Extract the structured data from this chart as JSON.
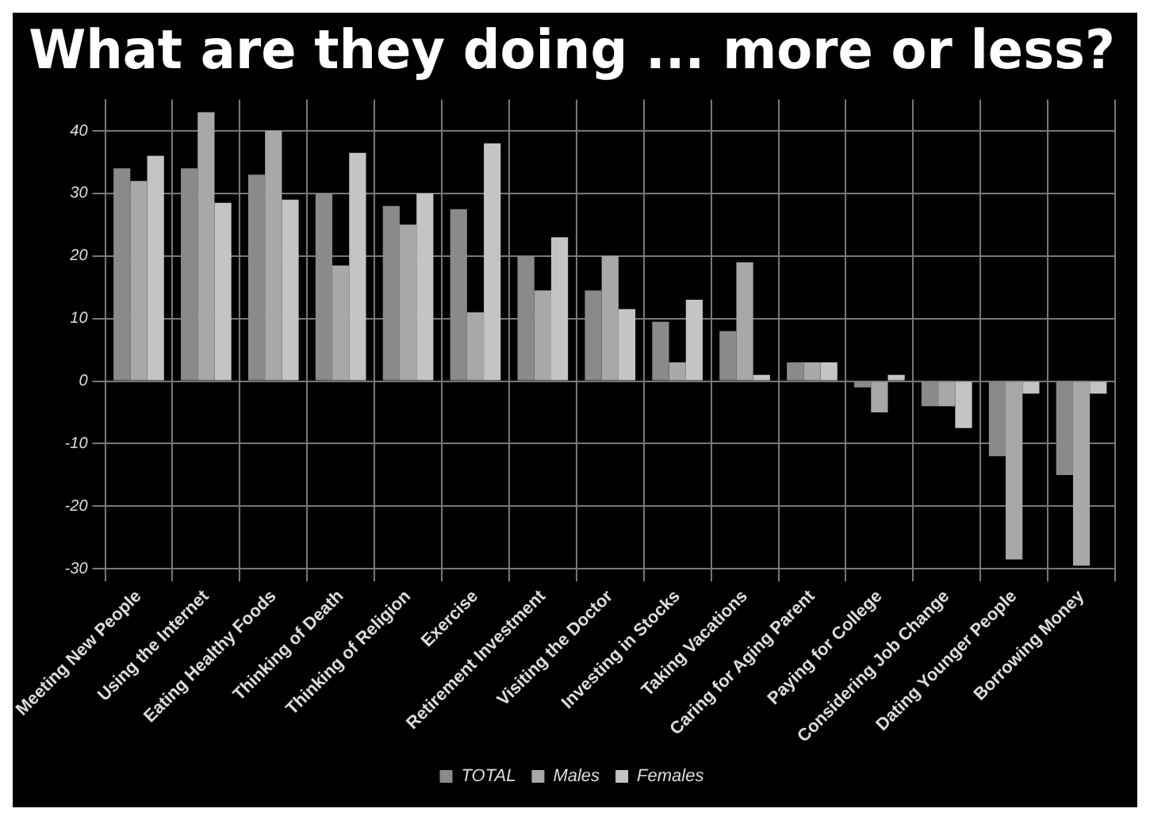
{
  "chart_data": {
    "type": "bar",
    "title": "What are they doing ... more or less?",
    "categories": [
      "Meeting New People",
      "Using the Internet",
      "Eating Healthy Foods",
      "Thinking of Death",
      "Thinking of Religion",
      "Exercise",
      "Retirement Investment",
      "Visiting the Doctor",
      "Investing in Stocks",
      "Taking Vacations",
      "Caring for Aging Parent",
      "Paying for College",
      "Considering Job Change",
      "Dating Younger People",
      "Borrowing Money"
    ],
    "series": [
      {
        "name": "TOTAL",
        "color": "#8a8a8a",
        "values": [
          34,
          34,
          33,
          30,
          28,
          27.5,
          20,
          14.5,
          9.5,
          8,
          3,
          -1,
          -4,
          -12,
          -15
        ]
      },
      {
        "name": "Males",
        "color": "#a8a8a8",
        "values": [
          32,
          43,
          40,
          18.5,
          25,
          11,
          14.5,
          20,
          3,
          19,
          3,
          -5,
          -4,
          -28.5,
          -29.5
        ]
      },
      {
        "name": "Females",
        "color": "#c4c4c4",
        "values": [
          36,
          28.5,
          29,
          36.5,
          30,
          38,
          23,
          11.5,
          13,
          1,
          3,
          1,
          -7.5,
          -2,
          -2
        ]
      }
    ],
    "ylim": [
      -30,
      45
    ],
    "yticks": [
      -30,
      -20,
      -10,
      0,
      10,
      20,
      30,
      40
    ],
    "grid": true,
    "legend": "bottom"
  }
}
